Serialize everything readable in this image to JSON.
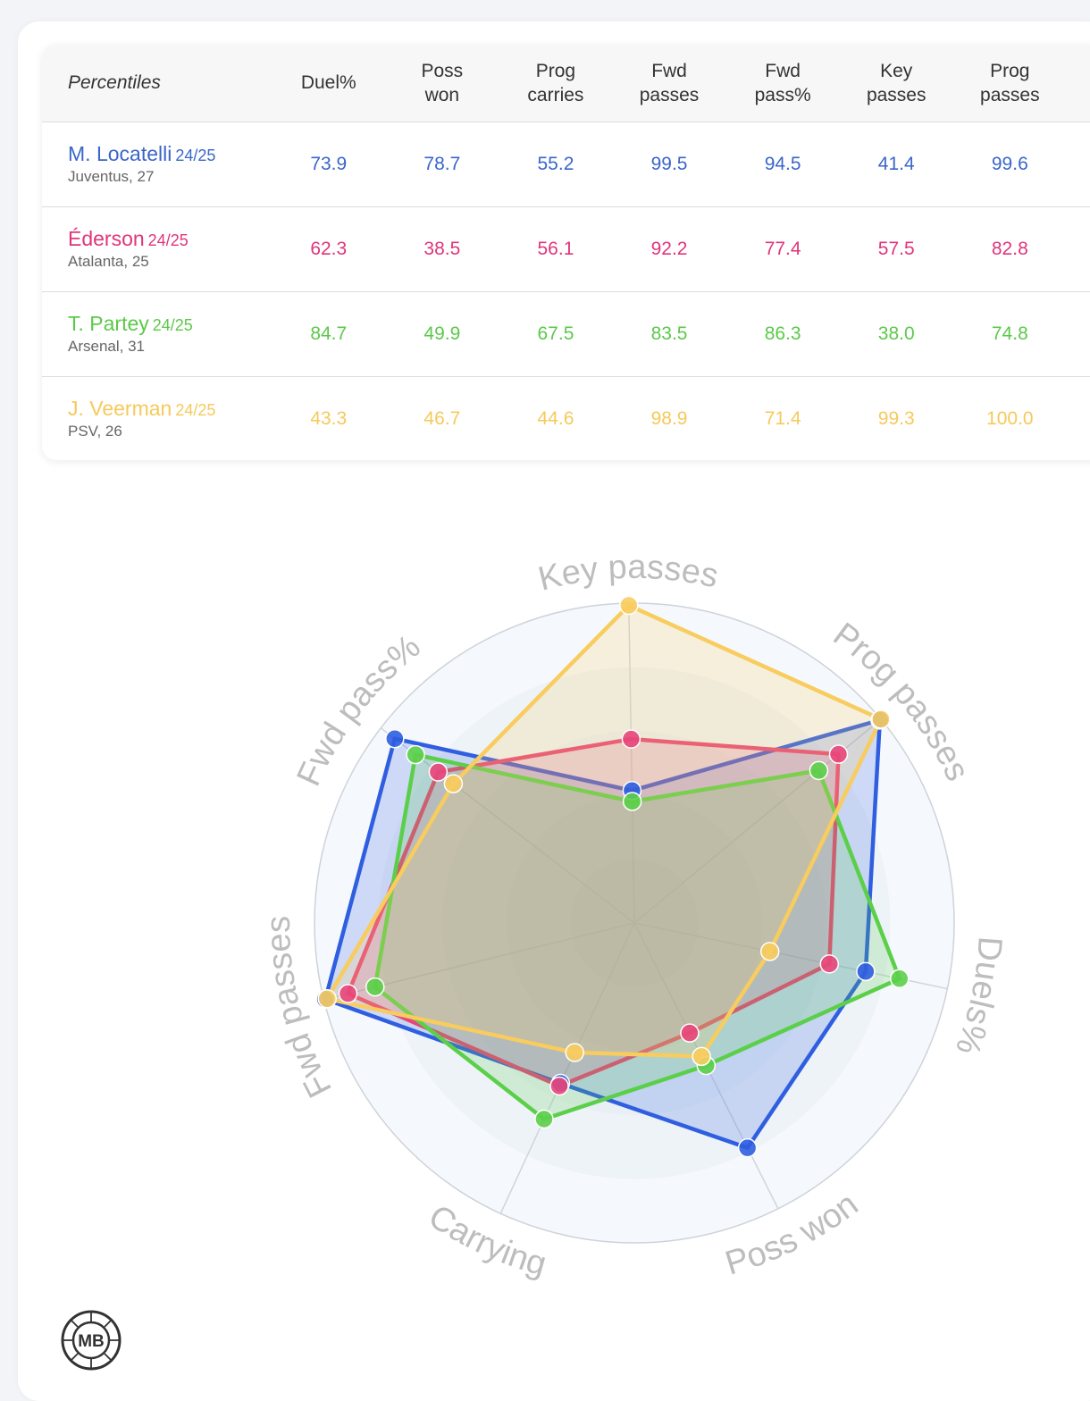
{
  "table": {
    "header_label": "Percentiles",
    "columns": [
      {
        "line1": "Duel%",
        "line2": ""
      },
      {
        "line1": "Poss",
        "line2": "won"
      },
      {
        "line1": "Prog",
        "line2": "carries"
      },
      {
        "line1": "Fwd",
        "line2": "passes"
      },
      {
        "line1": "Fwd",
        "line2": "pass%"
      },
      {
        "line1": "Key",
        "line2": "passes"
      },
      {
        "line1": "Prog",
        "line2": "passes"
      }
    ],
    "rows": [
      {
        "name": "M. Locatelli",
        "season": "24/25",
        "club": "Juventus, 27",
        "color": "#3a66c9",
        "values": [
          "73.9",
          "78.7",
          "55.2",
          "99.5",
          "94.5",
          "41.4",
          "99.6"
        ]
      },
      {
        "name": "Éderson",
        "season": "24/25",
        "club": "Atalanta, 25",
        "color": "#e0357a",
        "values": [
          "62.3",
          "38.5",
          "56.1",
          "92.2",
          "77.4",
          "57.5",
          "82.8"
        ]
      },
      {
        "name": "T. Partey",
        "season": "24/25",
        "club": "Arsenal, 31",
        "color": "#5cc94a",
        "values": [
          "84.7",
          "49.9",
          "67.5",
          "83.5",
          "86.3",
          "38.0",
          "74.8"
        ]
      },
      {
        "name": "J. Veerman",
        "season": "24/25",
        "club": "PSV, 26",
        "color": "#f6c95a",
        "values": [
          "43.3",
          "46.7",
          "44.6",
          "98.9",
          "71.4",
          "99.3",
          "100.0"
        ]
      }
    ]
  },
  "chart_data": {
    "type": "radar",
    "axes": [
      "Key passes",
      "Prog passes",
      "Duels%",
      "Poss won",
      "Carrying",
      "Fwd passes",
      "Fwd pass%"
    ],
    "range": [
      0,
      100
    ],
    "grid": true,
    "series": [
      {
        "name": "M. Locatelli",
        "color": "#2f5ee0",
        "values": [
          41.4,
          99.6,
          73.9,
          78.7,
          55.2,
          99.5,
          94.5
        ]
      },
      {
        "name": "Éderson",
        "color": "#e8467a",
        "values": [
          57.5,
          82.8,
          62.3,
          38.5,
          56.1,
          92.2,
          77.4
        ]
      },
      {
        "name": "T. Partey",
        "color": "#5ccf4a",
        "values": [
          38.0,
          74.8,
          84.7,
          49.9,
          67.5,
          83.5,
          86.3
        ]
      },
      {
        "name": "J. Veerman",
        "color": "#f8cc5e",
        "values": [
          99.3,
          100.0,
          43.3,
          46.7,
          44.6,
          98.9,
          71.4
        ]
      }
    ]
  },
  "logo": {
    "text": "MB"
  }
}
